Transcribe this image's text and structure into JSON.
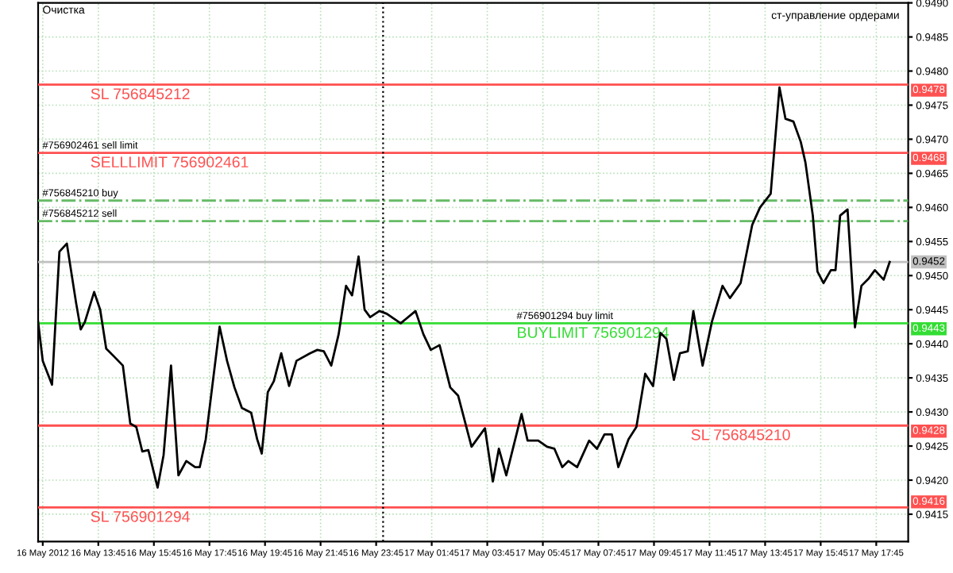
{
  "chart_data": {
    "type": "line",
    "x": [
      "2012-05-16T11:35",
      "2012-05-16T11:45",
      "2012-05-16T12:05",
      "2012-05-16T12:21",
      "2012-05-16T12:37",
      "2012-05-16T12:57",
      "2012-05-16T13:07",
      "2012-05-16T13:16",
      "2012-05-16T13:36",
      "2012-05-16T13:49",
      "2012-05-16T14:02",
      "2012-05-16T14:18",
      "2012-05-16T14:38",
      "2012-05-16T14:54",
      "2012-05-16T15:07",
      "2012-05-16T15:20",
      "2012-05-16T15:33",
      "2012-05-16T15:53",
      "2012-05-16T16:06",
      "2012-05-16T16:22",
      "2012-05-16T16:38",
      "2012-05-16T16:55",
      "2012-05-16T17:14",
      "2012-05-16T17:24",
      "2012-05-16T17:37",
      "2012-05-16T18:07",
      "2012-05-16T18:23",
      "2012-05-16T18:39",
      "2012-05-16T18:55",
      "2012-05-16T19:15",
      "2012-05-16T19:28",
      "2012-05-16T19:38",
      "2012-05-16T19:51",
      "2012-05-16T20:04",
      "2012-05-16T20:20",
      "2012-05-16T20:37",
      "2012-05-16T20:53",
      "2012-05-16T21:22",
      "2012-05-16T21:38",
      "2012-05-16T21:52",
      "2012-05-16T22:08",
      "2012-05-16T22:24",
      "2012-05-16T22:40",
      "2012-05-16T22:53",
      "2012-05-16T23:07",
      "2012-05-16T23:20",
      "2012-05-16T23:32",
      "2012-05-16T23:52",
      "2012-05-17T00:08",
      "2012-05-17T00:38",
      "2012-05-17T01:10",
      "2012-05-17T01:27",
      "2012-05-17T01:43",
      "2012-05-17T02:02",
      "2012-05-17T02:25",
      "2012-05-17T02:42",
      "2012-05-17T03:11",
      "2012-05-17T03:40",
      "2012-05-17T03:47",
      "2012-05-17T03:57",
      "2012-05-17T04:10",
      "2012-05-17T04:26",
      "2012-05-17T04:59",
      "2012-05-17T05:12",
      "2012-05-17T05:35",
      "2012-05-17T05:54",
      "2012-05-17T06:10",
      "2012-05-17T06:27",
      "2012-05-17T06:40",
      "2012-05-17T06:59",
      "2012-05-17T07:25",
      "2012-05-17T07:42",
      "2012-05-17T07:58",
      "2012-05-17T08:14",
      "2012-05-17T08:28",
      "2012-05-17T08:50",
      "2012-05-17T09:07",
      "2012-05-17T09:26",
      "2012-05-17T09:43",
      "2012-05-17T09:59",
      "2012-05-17T10:12",
      "2012-05-17T10:28",
      "2012-05-17T10:41",
      "2012-05-17T10:58",
      "2012-05-17T11:10",
      "2012-05-17T11:30",
      "2012-05-17T11:50",
      "2012-05-17T12:13",
      "2012-05-17T12:29",
      "2012-05-17T12:52",
      "2012-05-17T13:17",
      "2012-05-17T13:34",
      "2012-05-17T13:57",
      "2012-05-17T14:16",
      "2012-05-17T14:29",
      "2012-05-17T14:46",
      "2012-05-17T15:02",
      "2012-05-17T15:12",
      "2012-05-17T15:28",
      "2012-05-17T15:38",
      "2012-05-17T15:51",
      "2012-05-17T16:07",
      "2012-05-17T16:17",
      "2012-05-17T16:27",
      "2012-05-17T16:43",
      "2012-05-17T16:59",
      "2012-05-17T17:13",
      "2012-05-17T17:29",
      "2012-05-17T17:42",
      "2012-05-17T18:01",
      "2012-05-17T18:14"
    ],
    "series": [
      {
        "color": "#000000",
        "values": [
          0.94432,
          0.94375,
          0.9434,
          0.94535,
          0.94547,
          0.9446,
          0.94421,
          0.94432,
          0.94476,
          0.9445,
          0.94393,
          0.94382,
          0.94368,
          0.94283,
          0.94278,
          0.94242,
          0.94244,
          0.94189,
          0.94237,
          0.94368,
          0.94207,
          0.94228,
          0.94219,
          0.94219,
          0.9426,
          0.94425,
          0.94375,
          0.94336,
          0.94306,
          0.94299,
          0.9426,
          0.94239,
          0.94329,
          0.94345,
          0.94386,
          0.94338,
          0.94375,
          0.94386,
          0.94391,
          0.94389,
          0.94368,
          0.94414,
          0.94485,
          0.94471,
          0.94528,
          0.9445,
          0.94439,
          0.94448,
          0.94444,
          0.9443,
          0.94448,
          0.94414,
          0.94391,
          0.94398,
          0.94336,
          0.94324,
          0.94249,
          0.94276,
          0.94244,
          0.94198,
          0.94246,
          0.94207,
          0.94297,
          0.94258,
          0.94258,
          0.94249,
          0.94246,
          0.94219,
          0.94228,
          0.94219,
          0.94258,
          0.94246,
          0.94267,
          0.94267,
          0.94219,
          0.9426,
          0.94278,
          0.94356,
          0.94338,
          0.94416,
          0.94407,
          0.94347,
          0.94386,
          0.94389,
          0.94448,
          0.94368,
          0.94432,
          0.94485,
          0.94467,
          0.94489,
          0.94574,
          0.946,
          0.9462,
          0.94776,
          0.9473,
          0.94726,
          0.94696,
          0.94666,
          0.94588,
          0.94506,
          0.94489,
          0.94508,
          0.94508,
          0.94588,
          0.94597,
          0.94424,
          0.94485,
          0.94496,
          0.94508,
          0.94494,
          0.9452
        ]
      }
    ],
    "xlim": [
      "2012-05-16T11:35",
      "2012-05-17T18:54"
    ],
    "xticks": [
      {
        "value": "2012-05-16T11:45",
        "label": "16 May 2012"
      },
      {
        "value": "2012-05-16T13:45",
        "label": "16 May 13:45"
      },
      {
        "value": "2012-05-16T15:45",
        "label": "16 May 15:45"
      },
      {
        "value": "2012-05-16T17:45",
        "label": "16 May 17:45"
      },
      {
        "value": "2012-05-16T19:45",
        "label": "16 May 19:45"
      },
      {
        "value": "2012-05-16T21:45",
        "label": "16 May 21:45"
      },
      {
        "value": "2012-05-16T23:45",
        "label": "16 May 23:45"
      },
      {
        "value": "2012-05-17T01:45",
        "label": "17 May 01:45"
      },
      {
        "value": "2012-05-17T03:45",
        "label": "17 May 03:45"
      },
      {
        "value": "2012-05-17T05:45",
        "label": "17 May 05:45"
      },
      {
        "value": "2012-05-17T07:45",
        "label": "17 May 07:45"
      },
      {
        "value": "2012-05-17T09:45",
        "label": "17 May 09:45"
      },
      {
        "value": "2012-05-17T11:45",
        "label": "17 May 11:45"
      },
      {
        "value": "2012-05-17T13:45",
        "label": "17 May 13:45"
      },
      {
        "value": "2012-05-17T15:45",
        "label": "17 May 15:45"
      },
      {
        "value": "2012-05-17T17:45",
        "label": "17 May 17:45"
      }
    ],
    "ylim": [
      0.9411,
      0.949
    ],
    "yticks": [
      {
        "value": 0.9415,
        "label": "0.9415"
      },
      {
        "value": 0.942,
        "label": "0.9420"
      },
      {
        "value": 0.9425,
        "label": "0.9425"
      },
      {
        "value": 0.943,
        "label": "0.9430"
      },
      {
        "value": 0.9435,
        "label": "0.9435"
      },
      {
        "value": 0.944,
        "label": "0.9440"
      },
      {
        "value": 0.9445,
        "label": "0.9445"
      },
      {
        "value": 0.945,
        "label": "0.9450"
      },
      {
        "value": 0.9455,
        "label": "0.9455"
      },
      {
        "value": 0.946,
        "label": "0.9460"
      },
      {
        "value": 0.9465,
        "label": "0.9465"
      },
      {
        "value": 0.947,
        "label": "0.9470"
      },
      {
        "value": 0.9475,
        "label": "0.9475"
      },
      {
        "value": 0.948,
        "label": "0.9480"
      },
      {
        "value": 0.9485,
        "label": "0.9485"
      },
      {
        "value": 0.949,
        "label": "0.9490"
      }
    ],
    "grid": true,
    "marker": "none",
    "line_style": "solid",
    "ref_lines": [
      {
        "axis": "y",
        "value": 0.9478,
        "label": "0.9478",
        "color": "#ff5050",
        "line_style": "solid"
      },
      {
        "axis": "y",
        "value": 0.9468,
        "label": "0.9468",
        "color": "#ff5050",
        "line_style": "solid"
      },
      {
        "axis": "y",
        "value": 0.9461,
        "label": "#756845210 buy",
        "color": "#66bb66",
        "line_style": "dashdot"
      },
      {
        "axis": "y",
        "value": 0.9458,
        "label": "#756845212 sell",
        "color": "#66bb66",
        "line_style": "dashdot"
      },
      {
        "axis": "y",
        "value": 0.9452,
        "label": "0.9452",
        "color": "#c0c0c0",
        "line_style": "solid"
      },
      {
        "axis": "y",
        "value": 0.9443,
        "label": "0.9443",
        "color": "#33dd33",
        "line_style": "solid"
      },
      {
        "axis": "y",
        "value": 0.9428,
        "label": "0.9428",
        "color": "#ff5050",
        "line_style": "solid"
      },
      {
        "axis": "y",
        "value": 0.9416,
        "label": "0.9416",
        "color": "#ff5050",
        "line_style": "solid"
      },
      {
        "axis": "x",
        "value": "2012-05-17T00:00",
        "label": null,
        "color": "#000000",
        "line_style": "dotted"
      }
    ],
    "annotations": [
      "Очистка",
      "ст-управление ордерами",
      "#756902461 sell limit",
      "#756901294 buy limit",
      "SL 756845212",
      "SELLLIMIT 756902461",
      "BUYLIMIT 756901294",
      "SL 756845210",
      "SL 756901294"
    ]
  }
}
